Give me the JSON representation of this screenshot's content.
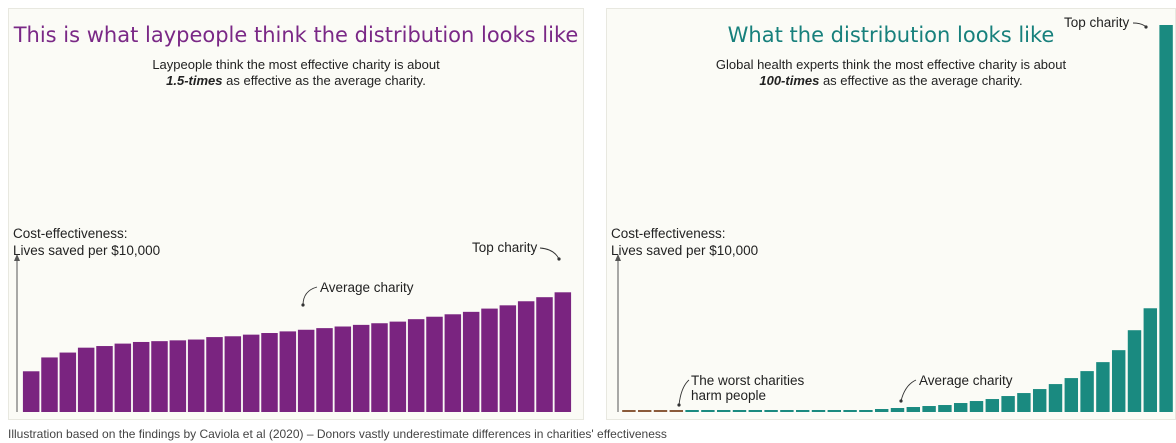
{
  "chart_data": [
    {
      "type": "bar",
      "title": "This is what laypeople think the distribution looks like",
      "subtitle_line1": "Laypeople think the most effective charity is about",
      "subtitle_bold": "1.5-times",
      "subtitle_line2_rest": " as effective as the average charity.",
      "ylabel_line1": "Cost-effectiveness:",
      "ylabel_line2": "Lives saved per $10,000",
      "bar_color": "#7a2480",
      "ylim": [
        0,
        350
      ],
      "values": [
        50,
        67,
        73,
        79,
        81,
        84,
        86,
        87,
        88,
        89,
        92,
        93,
        95,
        97,
        99,
        101,
        103,
        105,
        107,
        109,
        111,
        114,
        117,
        120,
        123,
        127,
        131,
        136,
        141,
        147
      ],
      "annotations": [
        {
          "label": "Average charity",
          "bar_index": 15
        },
        {
          "label": "Top charity",
          "bar_index": 29
        }
      ]
    },
    {
      "type": "bar",
      "title": "What the distribution looks like",
      "subtitle_line1": "Global health experts think the most effective charity is about",
      "subtitle_bold": "100-times",
      "subtitle_line2_rest": " as effective as the average charity.",
      "ylabel_line1": "Cost-effectiveness:",
      "ylabel_line2": "Lives saved per $10,000",
      "bar_color": "#1a8a80",
      "negative_bar_color": "#8a5a3a",
      "ylim": [
        0,
        390
      ],
      "values": [
        -1,
        -1,
        -1,
        -1,
        1,
        1,
        1,
        1,
        1,
        1,
        1,
        2,
        2,
        2,
        2,
        2,
        3,
        4,
        5,
        6,
        7,
        9,
        11,
        13,
        16,
        19,
        23,
        28,
        34,
        41,
        50,
        62,
        82,
        104,
        388
      ],
      "annotations": [
        {
          "label": "The worst charities",
          "label_line2": "harm people",
          "bar_index": 3
        },
        {
          "label": "Average charity",
          "bar_index": 16
        },
        {
          "label": "Top charity",
          "bar_index": 34
        }
      ]
    }
  ],
  "footer": "Illustration based on the findings by Caviola et al (2020) – Donors vastly underestimate differences in charities' effectiveness"
}
